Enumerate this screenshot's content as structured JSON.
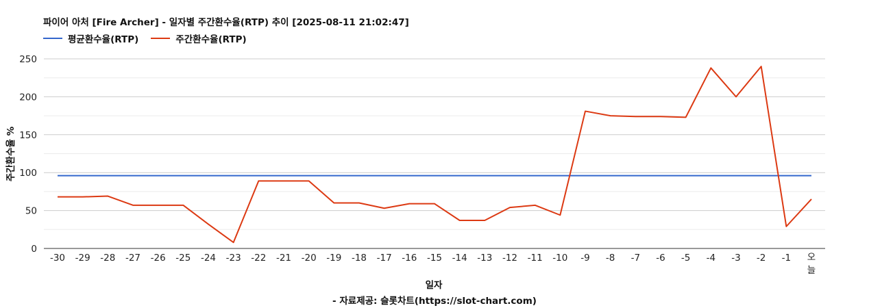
{
  "chart_data": {
    "type": "line",
    "title": "파이어 아처 [Fire Archer] - 일자별 주간환수율(RTP) 추이 [2025-08-11 21:02:47]",
    "xlabel": "일자",
    "ylabel": "주간환수율 %",
    "source": "- 자료제공: 슬롯차트(https://slot-chart.com)",
    "categories": [
      "-30",
      "-29",
      "-28",
      "-27",
      "-26",
      "-25",
      "-24",
      "-23",
      "-22",
      "-21",
      "-20",
      "-19",
      "-18",
      "-17",
      "-16",
      "-15",
      "-14",
      "-13",
      "-12",
      "-11",
      "-10",
      "-9",
      "-8",
      "-7",
      "-6",
      "-5",
      "-4",
      "-3",
      "-2",
      "-1",
      "오늘"
    ],
    "ylim": [
      0,
      250
    ],
    "yticks": [
      0,
      50,
      100,
      150,
      200,
      250
    ],
    "grid": true,
    "legend_position": "top-left",
    "series": [
      {
        "name": "평균환수율(RTP)",
        "color": "#3366cc",
        "values": [
          96,
          96,
          96,
          96,
          96,
          96,
          96,
          96,
          96,
          96,
          96,
          96,
          96,
          96,
          96,
          96,
          96,
          96,
          96,
          96,
          96,
          96,
          96,
          96,
          96,
          96,
          96,
          96,
          96,
          96,
          96
        ]
      },
      {
        "name": "주간환수율(RTP)",
        "color": "#dc3912",
        "values": [
          68,
          68,
          69,
          57,
          57,
          57,
          32,
          8,
          89,
          89,
          89,
          60,
          60,
          53,
          59,
          59,
          37,
          37,
          54,
          57,
          44,
          181,
          175,
          174,
          174,
          173,
          238,
          200,
          240,
          29,
          65
        ]
      }
    ]
  }
}
